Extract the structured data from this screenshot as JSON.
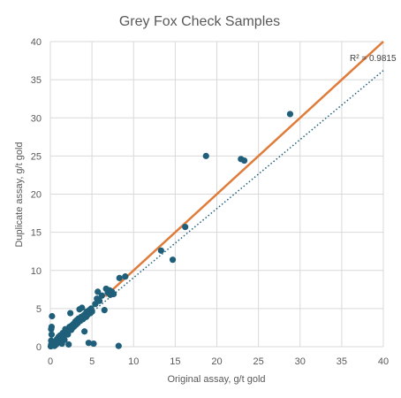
{
  "chart_data": {
    "type": "scatter",
    "title": "Grey Fox Check Samples",
    "xlabel": "Original assay, g/t gold",
    "ylabel": "Duplicate assay, g/t gold",
    "xlim": [
      0,
      40
    ],
    "ylim": [
      0,
      40
    ],
    "xticks": [
      0,
      5,
      10,
      15,
      20,
      25,
      30,
      35,
      40
    ],
    "yticks": [
      0,
      5,
      10,
      15,
      20,
      25,
      30,
      35,
      40
    ],
    "grid": true,
    "annotation": "R² = 0.9815",
    "colors": {
      "points": "#1f5f7a",
      "fit_line": "#e07b39",
      "trend_line": "#1f5f7a",
      "grid": "#d9d9d9",
      "text": "#595959"
    },
    "series": [
      {
        "points": [
          [
            0.05,
            0.05
          ],
          [
            0.1,
            0.3
          ],
          [
            0.1,
            0.8
          ],
          [
            0.15,
            1.6
          ],
          [
            0.1,
            2.3
          ],
          [
            0.15,
            2.6
          ],
          [
            0.2,
            4.0
          ],
          [
            0.3,
            0.2
          ],
          [
            0.4,
            0.5
          ],
          [
            0.5,
            0.1
          ],
          [
            0.6,
            0.7
          ],
          [
            0.7,
            0.3
          ],
          [
            0.8,
            1.0
          ],
          [
            0.9,
            0.5
          ],
          [
            1.0,
            1.3
          ],
          [
            1.1,
            0.8
          ],
          [
            1.2,
            1.5
          ],
          [
            1.3,
            1.1
          ],
          [
            1.4,
            0.4
          ],
          [
            1.5,
            1.8
          ],
          [
            1.6,
            1.4
          ],
          [
            1.7,
            0.9
          ],
          [
            1.8,
            2.3
          ],
          [
            1.9,
            1.7
          ],
          [
            2.0,
            2.0
          ],
          [
            2.1,
            1.6
          ],
          [
            2.2,
            0.3
          ],
          [
            2.3,
            2.6
          ],
          [
            2.4,
            4.4
          ],
          [
            2.5,
            2.2
          ],
          [
            2.6,
            2.8
          ],
          [
            2.7,
            2.5
          ],
          [
            2.8,
            3.0
          ],
          [
            2.9,
            2.7
          ],
          [
            3.0,
            3.3
          ],
          [
            3.1,
            2.9
          ],
          [
            3.2,
            3.5
          ],
          [
            3.3,
            3.1
          ],
          [
            3.4,
            3.7
          ],
          [
            3.5,
            4.9
          ],
          [
            3.6,
            3.4
          ],
          [
            3.7,
            3.9
          ],
          [
            3.8,
            5.1
          ],
          [
            3.9,
            3.6
          ],
          [
            4.0,
            4.1
          ],
          [
            4.1,
            2.0
          ],
          [
            4.2,
            4.3
          ],
          [
            4.3,
            3.9
          ],
          [
            4.4,
            4.6
          ],
          [
            4.5,
            4.2
          ],
          [
            4.6,
            0.5
          ],
          [
            4.7,
            4.8
          ],
          [
            4.8,
            4.4
          ],
          [
            4.9,
            5.0
          ],
          [
            5.0,
            4.6
          ],
          [
            5.2,
            0.4
          ],
          [
            5.4,
            5.6
          ],
          [
            5.6,
            6.3
          ],
          [
            5.7,
            7.2
          ],
          [
            5.9,
            6.0
          ],
          [
            6.2,
            6.7
          ],
          [
            6.5,
            4.8
          ],
          [
            6.7,
            7.6
          ],
          [
            6.9,
            7.1
          ],
          [
            7.1,
            7.4
          ],
          [
            7.2,
            6.8
          ],
          [
            7.4,
            7.2
          ],
          [
            7.6,
            6.9
          ],
          [
            8.2,
            0.1
          ],
          [
            8.3,
            9.0
          ],
          [
            9.0,
            9.2
          ],
          [
            13.3,
            12.6
          ],
          [
            14.7,
            11.4
          ],
          [
            16.2,
            15.7
          ],
          [
            18.7,
            25.0
          ],
          [
            22.9,
            24.6
          ],
          [
            23.3,
            24.4
          ],
          [
            28.8,
            30.5
          ]
        ]
      }
    ],
    "fit_line": {
      "from": [
        6.6,
        6.6
      ],
      "to": [
        40,
        40
      ]
    },
    "trend_line": {
      "from": [
        0,
        0
      ],
      "to": [
        40,
        36.2
      ]
    }
  }
}
